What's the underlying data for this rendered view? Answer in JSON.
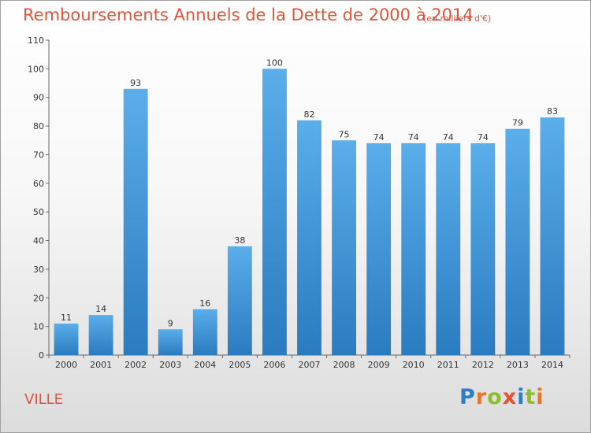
{
  "chart_data": {
    "type": "bar",
    "title": "Remboursements Annuels de la Dette de 2000 à 2014",
    "subtitle": "(en milliers d'€)",
    "categories": [
      "2000",
      "2001",
      "2002",
      "2003",
      "2004",
      "2005",
      "2006",
      "2007",
      "2008",
      "2009",
      "2010",
      "2011",
      "2012",
      "2013",
      "2014"
    ],
    "values": [
      11,
      14,
      93,
      9,
      16,
      38,
      100,
      82,
      75,
      74,
      74,
      74,
      74,
      79,
      83
    ],
    "ylim": [
      0,
      110
    ],
    "yticks": [
      0,
      10,
      20,
      30,
      40,
      50,
      60,
      70,
      80,
      90,
      100,
      110
    ],
    "grid": false,
    "bar_color": "#3f93d6",
    "xlabel": "",
    "ylabel": ""
  },
  "footer": {
    "place": "VILLE",
    "logo_letters": [
      {
        "ch": "P",
        "color": "#2f7ec2"
      },
      {
        "ch": "r",
        "color": "#e8732a"
      },
      {
        "ch": "o",
        "color": "#8cbd2d"
      },
      {
        "ch": "x",
        "color": "#e84e2f"
      },
      {
        "ch": "i",
        "color": "#2f7ec2"
      },
      {
        "ch": "t",
        "color": "#8cbd2d"
      },
      {
        "ch": "i",
        "color": "#e8732a"
      }
    ]
  }
}
